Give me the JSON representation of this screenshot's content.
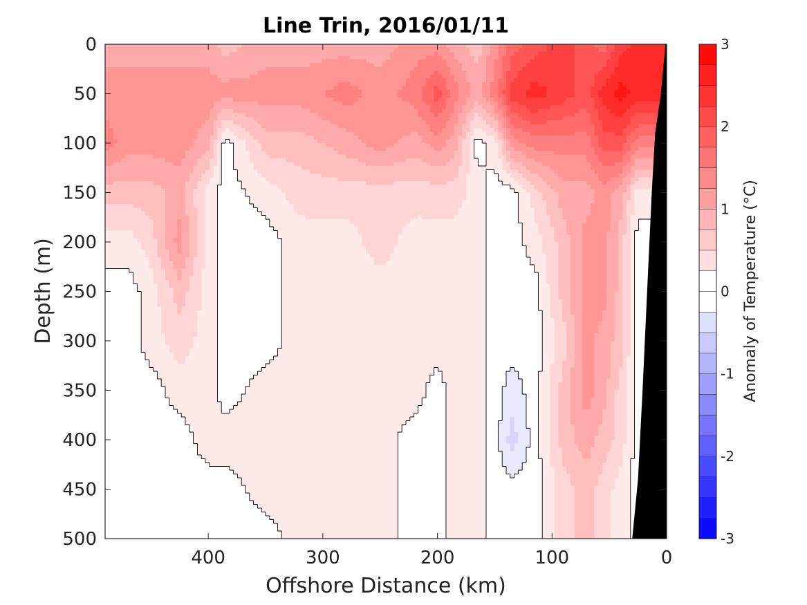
{
  "chart_data": {
    "type": "heatmap",
    "title": "Line Trin, 2016/01/11",
    "xlabel": "Offshore Distance (km)",
    "ylabel": "Depth (m)",
    "x_reversed": true,
    "y_reversed": true,
    "xlim": [
      0,
      490
    ],
    "ylim": [
      0,
      500
    ],
    "xticks": [
      400,
      300,
      200,
      100,
      0
    ],
    "yticks": [
      0,
      50,
      100,
      150,
      200,
      250,
      300,
      350,
      400,
      450,
      500
    ],
    "colorbar": {
      "label": "Anomaly of Temperature (°C)",
      "range": [
        -3,
        3
      ],
      "step": 0.25,
      "ticks": [
        3,
        2,
        1,
        0,
        -1,
        -2,
        -3
      ],
      "low_color": "#0000ff",
      "mid_color": "#ffffff",
      "high_color": "#ff0000"
    },
    "colors": {
      "bottom_mask": "#000000",
      "contour_line": "#000000"
    },
    "bottom_mask": [
      {
        "x": 1,
        "depth": 0
      },
      {
        "x": 5,
        "depth": 50
      },
      {
        "x": 10,
        "depth": 90
      },
      {
        "x": 13,
        "depth": 150
      },
      {
        "x": 17,
        "depth": 250
      },
      {
        "x": 21,
        "depth": 350
      },
      {
        "x": 25,
        "depth": 440
      },
      {
        "x": 30,
        "depth": 500
      }
    ],
    "columns": [
      {
        "x": 490,
        "values": [
          1.0,
          1.25,
          1.5,
          0.75,
          0.25,
          0.0,
          0.0,
          0.0,
          0.0,
          0.0,
          0.0
        ]
      },
      {
        "x": 470,
        "values": [
          1.0,
          1.25,
          1.25,
          0.75,
          0.25,
          0.0,
          0.0,
          0.0,
          0.0,
          0.0,
          0.0
        ]
      },
      {
        "x": 450,
        "values": [
          1.0,
          1.25,
          1.25,
          0.75,
          0.5,
          0.25,
          0.25,
          0.0,
          0.0,
          0.0,
          0.0
        ]
      },
      {
        "x": 425,
        "values": [
          1.0,
          1.25,
          1.25,
          1.0,
          1.25,
          0.75,
          0.5,
          0.25,
          0.0,
          0.0,
          0.0
        ]
      },
      {
        "x": 400,
        "values": [
          1.0,
          1.25,
          1.0,
          0.25,
          0.25,
          0.25,
          0.25,
          0.25,
          0.25,
          0.0,
          0.0
        ]
      },
      {
        "x": 385,
        "values": [
          0.75,
          1.25,
          0.0,
          0.0,
          0.0,
          0.0,
          0.0,
          0.0,
          0.25,
          0.0,
          0.0
        ]
      },
      {
        "x": 350,
        "values": [
          1.0,
          1.25,
          0.75,
          0.25,
          0.0,
          0.0,
          0.0,
          0.25,
          0.25,
          0.25,
          0.0
        ]
      },
      {
        "x": 320,
        "values": [
          1.0,
          1.25,
          0.75,
          0.5,
          0.25,
          0.25,
          0.25,
          0.25,
          0.25,
          0.25,
          0.25
        ]
      },
      {
        "x": 280,
        "values": [
          1.0,
          1.5,
          1.0,
          0.5,
          0.25,
          0.25,
          0.25,
          0.25,
          0.25,
          0.25,
          0.25
        ]
      },
      {
        "x": 250,
        "values": [
          1.0,
          1.25,
          1.25,
          0.5,
          0.5,
          0.25,
          0.25,
          0.25,
          0.25,
          0.25,
          0.25
        ]
      },
      {
        "x": 220,
        "values": [
          1.25,
          1.5,
          1.0,
          0.5,
          0.25,
          0.25,
          0.25,
          0.25,
          0.0,
          0.0,
          0.0
        ]
      },
      {
        "x": 200,
        "values": [
          1.25,
          2.0,
          1.25,
          0.5,
          0.25,
          0.25,
          0.25,
          0.0,
          0.0,
          0.0,
          0.0
        ]
      },
      {
        "x": 185,
        "values": [
          1.0,
          1.5,
          1.0,
          0.5,
          0.25,
          0.25,
          0.25,
          0.25,
          0.25,
          0.25,
          0.25
        ]
      },
      {
        "x": 165,
        "values": [
          0.75,
          1.0,
          0.0,
          0.25,
          0.25,
          0.25,
          0.25,
          0.25,
          0.25,
          0.25,
          0.25
        ]
      },
      {
        "x": 150,
        "values": [
          1.25,
          1.5,
          0.25,
          0.0,
          0.0,
          0.0,
          0.0,
          0.0,
          0.0,
          0.0,
          0.0
        ]
      },
      {
        "x": 135,
        "values": [
          1.75,
          2.25,
          1.25,
          0.0,
          0.0,
          0.0,
          0.0,
          -0.25,
          -0.5,
          0.0,
          0.0
        ]
      },
      {
        "x": 115,
        "values": [
          2.0,
          2.5,
          1.5,
          0.5,
          0.25,
          0.0,
          0.0,
          0.0,
          0.0,
          0.0,
          0.0
        ]
      },
      {
        "x": 90,
        "values": [
          2.25,
          2.25,
          1.5,
          1.0,
          0.75,
          0.75,
          0.5,
          0.75,
          0.75,
          0.5,
          0.5
        ]
      },
      {
        "x": 70,
        "values": [
          2.0,
          2.0,
          1.5,
          1.0,
          1.25,
          1.25,
          1.25,
          1.25,
          1.0,
          0.75,
          0.75
        ]
      },
      {
        "x": 55,
        "values": [
          1.75,
          2.5,
          2.0,
          1.25,
          1.25,
          1.25,
          1.0,
          1.0,
          0.75,
          0.5,
          0.5
        ]
      },
      {
        "x": 40,
        "values": [
          2.25,
          2.75,
          2.0,
          1.0,
          0.75,
          0.75,
          0.75,
          0.5,
          0.5,
          0.25,
          0.25
        ]
      },
      {
        "x": 25,
        "values": [
          2.5,
          2.5,
          1.5,
          0.25,
          0.0,
          0.0,
          0.0,
          0.0,
          0.0,
          0.0,
          0.0
        ]
      }
    ]
  }
}
